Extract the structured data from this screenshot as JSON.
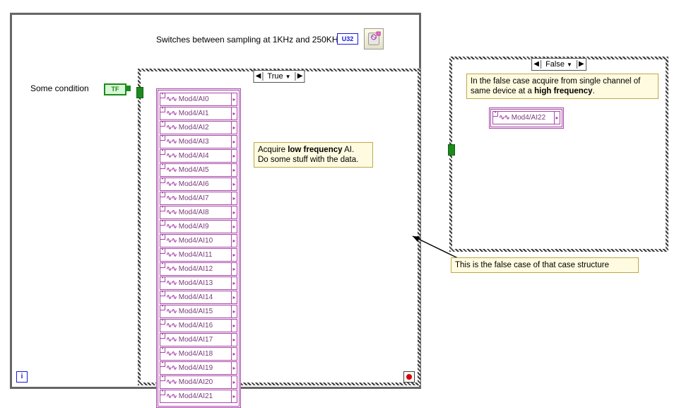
{
  "title_text": "Switches between sampling at 1KHz and 250KHz",
  "u32_label": "U32",
  "condition_label": "Some condition",
  "tf_label": "TF",
  "true_case": {
    "selector_label": "True",
    "channels": [
      "Mod4/AI0",
      "Mod4/AI1",
      "Mod4/AI2",
      "Mod4/AI3",
      "Mod4/AI4",
      "Mod4/AI5",
      "Mod4/AI6",
      "Mod4/AI7",
      "Mod4/AI8",
      "Mod4/AI9",
      "Mod4/AI10",
      "Mod4/AI11",
      "Mod4/AI12",
      "Mod4/AI13",
      "Mod4/AI14",
      "Mod4/AI15",
      "Mod4/AI16",
      "Mod4/AI17",
      "Mod4/AI18",
      "Mod4/AI19",
      "Mod4/AI20",
      "Mod4/AI21"
    ],
    "comment_html": "Acquire <b>low frequency</b> AI.<br>Do some stuff with the data."
  },
  "false_case": {
    "selector_label": "False",
    "comment_html": "In the false case acquire from single channel of same device at a <b>high frequency</b>.",
    "channel": "Mod4/AI22"
  },
  "callout_text": "This is the false case of that case structure",
  "loop_i": "i",
  "colors": {
    "frame_border": "#666666",
    "case_hatch_dark": "#3a3a3a",
    "channel_purple": "#a846a8",
    "comment_bg": "#fffbe0",
    "comment_border": "#bda84a",
    "bool_green": "#1d8a1d",
    "u32_blue": "#1a1adb",
    "stop_red": "#d80000"
  }
}
